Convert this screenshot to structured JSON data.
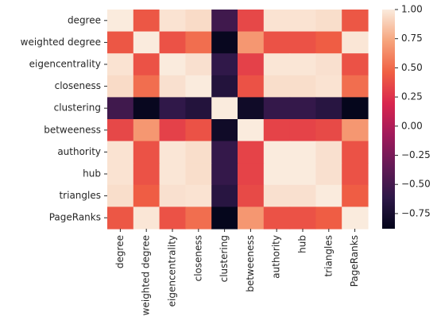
{
  "chart_data": {
    "type": "heatmap",
    "title": "",
    "xlabel": "",
    "ylabel": "",
    "labels": [
      "degree",
      "weighted degree",
      "eigencentrality",
      "closeness",
      "clustering",
      "betweeness",
      "authority",
      "hub",
      "triangles",
      "PageRanks"
    ],
    "values": [
      [
        1.0,
        0.42,
        0.97,
        0.94,
        -0.52,
        0.35,
        0.97,
        0.97,
        0.95,
        0.42
      ],
      [
        0.42,
        1.0,
        0.4,
        0.52,
        -0.85,
        0.68,
        0.4,
        0.4,
        0.45,
        0.98
      ],
      [
        0.97,
        0.4,
        1.0,
        0.96,
        -0.6,
        0.32,
        0.98,
        0.98,
        0.96,
        0.4
      ],
      [
        0.94,
        0.52,
        0.96,
        1.0,
        -0.68,
        0.4,
        0.95,
        0.95,
        0.97,
        0.52
      ],
      [
        -0.52,
        -0.85,
        -0.6,
        -0.68,
        1.0,
        -0.8,
        -0.58,
        -0.58,
        -0.65,
        -0.87
      ],
      [
        0.35,
        0.68,
        0.32,
        0.4,
        -0.8,
        1.0,
        0.33,
        0.33,
        0.36,
        0.68
      ],
      [
        0.97,
        0.4,
        0.98,
        0.95,
        -0.58,
        0.33,
        1.0,
        1.0,
        0.96,
        0.4
      ],
      [
        0.97,
        0.4,
        0.98,
        0.95,
        -0.58,
        0.33,
        1.0,
        1.0,
        0.96,
        0.4
      ],
      [
        0.95,
        0.45,
        0.96,
        0.97,
        -0.65,
        0.36,
        0.96,
        0.96,
        1.0,
        0.45
      ],
      [
        0.42,
        0.98,
        0.4,
        0.52,
        -0.87,
        0.68,
        0.4,
        0.4,
        0.45,
        1.0
      ]
    ],
    "colorbar": {
      "min": -0.88,
      "max": 1.0,
      "ticks": [
        1.0,
        0.75,
        0.5,
        0.25,
        0.0,
        -0.25,
        -0.5,
        -0.75
      ],
      "tick_labels": [
        "1.00",
        "0.75",
        "0.50",
        "0.25",
        "0.00",
        "−0.25",
        "−0.50",
        "−0.75"
      ]
    },
    "colormap": {
      "name": "rocket",
      "stops": [
        "#03051a",
        "#2e1848",
        "#641a56",
        "#a11a5b",
        "#d9264e",
        "#f06043",
        "#f6a47c",
        "#faebdd"
      ]
    },
    "grid": false,
    "legend": "colorbar-right"
  }
}
